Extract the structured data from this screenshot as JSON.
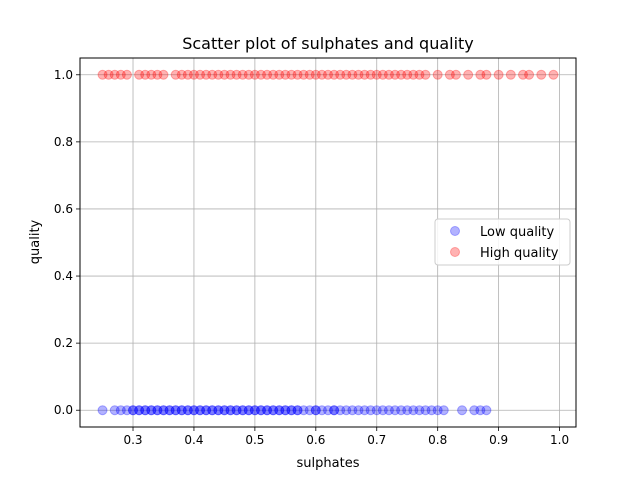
{
  "chart_data": {
    "type": "scatter",
    "title": "Scatter plot of sulphates and quality",
    "xlabel": "sulphates",
    "ylabel": "quality",
    "xlim": [
      0.213,
      1.027
    ],
    "ylim": [
      -0.05,
      1.05
    ],
    "x_ticks": [
      0.3,
      0.4,
      0.5,
      0.6,
      0.7,
      0.8,
      0.9,
      1.0
    ],
    "x_tick_labels": [
      "0.3",
      "0.4",
      "0.5",
      "0.6",
      "0.7",
      "0.8",
      "0.9",
      "1.0"
    ],
    "y_ticks": [
      0.0,
      0.2,
      0.4,
      0.6,
      0.8,
      1.0
    ],
    "y_tick_labels": [
      "0.0",
      "0.2",
      "0.4",
      "0.6",
      "0.8",
      "1.0"
    ],
    "grid": true,
    "legend_position": "center-right",
    "series": [
      {
        "name": "Low quality",
        "color": "#0000ff",
        "y": 0,
        "x": [
          0.25,
          0.27,
          0.28,
          0.29,
          0.3,
          0.3,
          0.31,
          0.31,
          0.32,
          0.32,
          0.33,
          0.33,
          0.34,
          0.34,
          0.35,
          0.35,
          0.36,
          0.36,
          0.37,
          0.37,
          0.38,
          0.38,
          0.39,
          0.39,
          0.4,
          0.4,
          0.41,
          0.41,
          0.42,
          0.42,
          0.43,
          0.43,
          0.44,
          0.44,
          0.45,
          0.45,
          0.46,
          0.46,
          0.47,
          0.47,
          0.48,
          0.48,
          0.49,
          0.49,
          0.5,
          0.5,
          0.51,
          0.51,
          0.52,
          0.52,
          0.53,
          0.53,
          0.54,
          0.54,
          0.55,
          0.55,
          0.56,
          0.56,
          0.57,
          0.57,
          0.58,
          0.59,
          0.6,
          0.6,
          0.61,
          0.62,
          0.63,
          0.63,
          0.64,
          0.65,
          0.66,
          0.67,
          0.68,
          0.69,
          0.7,
          0.71,
          0.72,
          0.73,
          0.74,
          0.75,
          0.76,
          0.77,
          0.78,
          0.79,
          0.8,
          0.81,
          0.84,
          0.86,
          0.87,
          0.88
        ]
      },
      {
        "name": "High quality",
        "color": "#ff0000",
        "y": 1,
        "x": [
          0.25,
          0.26,
          0.27,
          0.28,
          0.29,
          0.31,
          0.32,
          0.33,
          0.34,
          0.35,
          0.37,
          0.38,
          0.39,
          0.4,
          0.41,
          0.42,
          0.43,
          0.44,
          0.45,
          0.46,
          0.47,
          0.48,
          0.49,
          0.5,
          0.51,
          0.52,
          0.53,
          0.54,
          0.55,
          0.56,
          0.57,
          0.58,
          0.59,
          0.6,
          0.61,
          0.62,
          0.63,
          0.64,
          0.65,
          0.66,
          0.67,
          0.68,
          0.69,
          0.7,
          0.71,
          0.72,
          0.73,
          0.74,
          0.75,
          0.76,
          0.77,
          0.78,
          0.8,
          0.82,
          0.83,
          0.85,
          0.87,
          0.88,
          0.9,
          0.92,
          0.94,
          0.95,
          0.97,
          0.99
        ]
      }
    ]
  }
}
